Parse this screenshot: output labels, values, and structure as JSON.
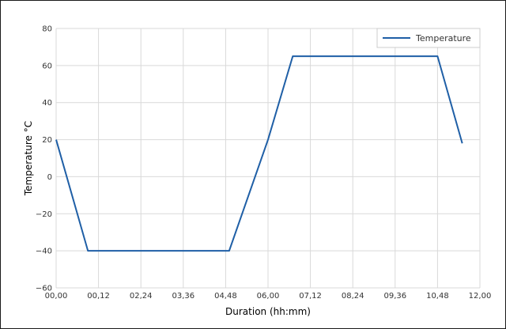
{
  "chart_data": {
    "type": "line",
    "title": "",
    "xlabel": "Duration (hh:mm)",
    "ylabel": "Temperature °C",
    "xlim": [
      "00:00",
      "12:00"
    ],
    "ylim": [
      -60,
      80
    ],
    "x_tick_labels": [
      "00,00",
      "00,12",
      "02,24",
      "03,36",
      "04,48",
      "06,00",
      "07,12",
      "08,24",
      "09,36",
      "10,48",
      "12,00"
    ],
    "y_ticks": [
      -60,
      -40,
      -20,
      0,
      20,
      40,
      60,
      80
    ],
    "grid": true,
    "legend_position": "top-right",
    "series": [
      {
        "name": "Temperature",
        "color": "#1f5fa6",
        "x": [
          "00:00",
          "00:54",
          "04:54",
          "06:00",
          "06:42",
          "10:48",
          "11:30"
        ],
        "y": [
          20,
          -40,
          -40,
          20,
          65,
          65,
          18
        ]
      }
    ]
  }
}
